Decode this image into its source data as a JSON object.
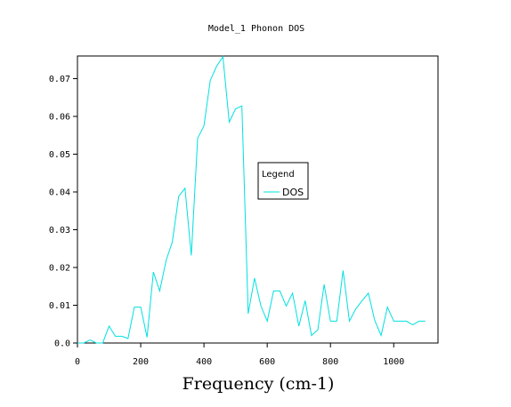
{
  "chart_data": {
    "type": "line",
    "title": "Model_1 Phonon DOS",
    "xlabel": "Frequency (cm-1)",
    "ylabel": "",
    "xlim": [
      0,
      1140
    ],
    "ylim": [
      0,
      0.076
    ],
    "xticks": [
      0,
      200,
      400,
      600,
      800,
      1000
    ],
    "xtick_labels": [
      "0",
      "200",
      "400",
      "600",
      "800",
      "1000"
    ],
    "yticks": [
      0,
      0.01,
      0.02,
      0.03,
      0.04,
      0.05,
      0.06,
      0.07
    ],
    "ytick_labels": [
      "0.0",
      "0.01",
      "0.02",
      "0.03",
      "0.04",
      "0.05",
      "0.06",
      "0.07"
    ],
    "grid": false,
    "legend": {
      "title": "Legend",
      "placement": "center-right"
    },
    "series": [
      {
        "name": "DOS",
        "color": "#00e0e0",
        "x": [
          0,
          20,
          40,
          60,
          80,
          100,
          120,
          140,
          160,
          180,
          200,
          220,
          240,
          260,
          280,
          300,
          320,
          340,
          360,
          380,
          400,
          420,
          440,
          460,
          480,
          500,
          520,
          540,
          560,
          580,
          600,
          620,
          640,
          660,
          680,
          700,
          720,
          740,
          760,
          780,
          800,
          820,
          840,
          860,
          880,
          900,
          920,
          940,
          960,
          980,
          1000,
          1020,
          1040,
          1060,
          1080,
          1100
        ],
        "y": [
          0.0,
          0.0,
          0.0008,
          0.0,
          0.0,
          0.0045,
          0.0018,
          0.0018,
          0.0012,
          0.0095,
          0.0095,
          0.0015,
          0.0188,
          0.0138,
          0.0218,
          0.0268,
          0.0388,
          0.041,
          0.0232,
          0.0542,
          0.0575,
          0.0695,
          0.0733,
          0.0758,
          0.0585,
          0.062,
          0.0628,
          0.0078,
          0.0172,
          0.0098,
          0.0058,
          0.0138,
          0.0138,
          0.0098,
          0.0132,
          0.0045,
          0.0112,
          0.002,
          0.0035,
          0.0155,
          0.0058,
          0.0058,
          0.0192,
          0.0058,
          0.009,
          0.0112,
          0.0132,
          0.006,
          0.002,
          0.0095,
          0.0058,
          0.0058,
          0.0058,
          0.0048,
          0.0058,
          0.0058
        ]
      }
    ]
  }
}
